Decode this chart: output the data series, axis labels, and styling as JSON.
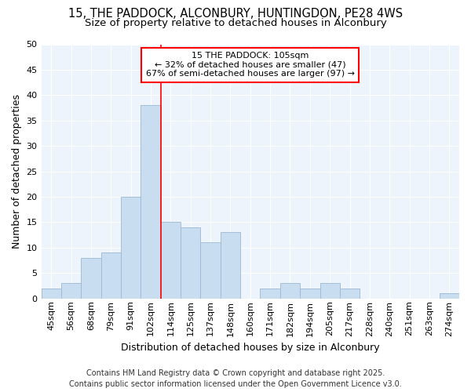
{
  "title_line1": "15, THE PADDOCK, ALCONBURY, HUNTINGDON, PE28 4WS",
  "title_line2": "Size of property relative to detached houses in Alconbury",
  "xlabel": "Distribution of detached houses by size in Alconbury",
  "ylabel": "Number of detached properties",
  "categories": [
    "45sqm",
    "56sqm",
    "68sqm",
    "79sqm",
    "91sqm",
    "102sqm",
    "114sqm",
    "125sqm",
    "137sqm",
    "148sqm",
    "160sqm",
    "171sqm",
    "182sqm",
    "194sqm",
    "205sqm",
    "217sqm",
    "228sqm",
    "240sqm",
    "251sqm",
    "263sqm",
    "274sqm"
  ],
  "values": [
    2,
    3,
    8,
    9,
    20,
    38,
    15,
    14,
    11,
    13,
    0,
    2,
    3,
    2,
    3,
    2,
    0,
    0,
    0,
    0,
    1
  ],
  "bar_color": "#c8ddf0",
  "bar_edge_color": "#9bb8d4",
  "red_line_index": 5,
  "ylim": [
    0,
    50
  ],
  "yticks": [
    0,
    5,
    10,
    15,
    20,
    25,
    30,
    35,
    40,
    45,
    50
  ],
  "annotation_title": "15 THE PADDOCK: 105sqm",
  "annotation_line2": "← 32% of detached houses are smaller (47)",
  "annotation_line3": "67% of semi-detached houses are larger (97) →",
  "annotation_box_facecolor": "#ffffff",
  "annotation_box_edgecolor": "red",
  "footer_line1": "Contains HM Land Registry data © Crown copyright and database right 2025.",
  "footer_line2": "Contains public sector information licensed under the Open Government Licence v3.0.",
  "plot_bg_color": "#eef4fb",
  "fig_bg_color": "#ffffff",
  "grid_color": "#ffffff",
  "title_fontsize": 10.5,
  "subtitle_fontsize": 9.5,
  "axis_label_fontsize": 9,
  "tick_fontsize": 8,
  "annotation_fontsize": 8,
  "footer_fontsize": 7
}
